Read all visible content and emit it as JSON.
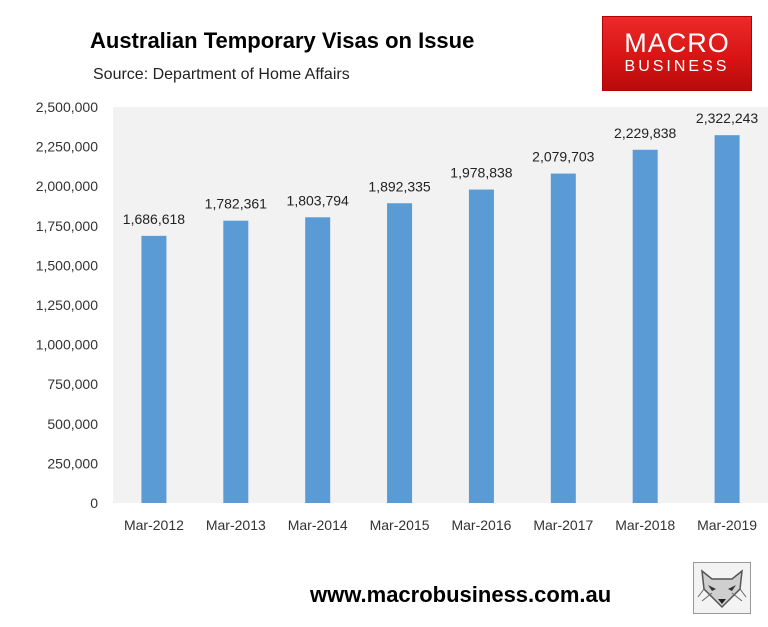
{
  "header": {
    "title": "Australian Temporary Visas on Issue",
    "source": "Source: Department of Home Affairs"
  },
  "logo": {
    "line1": "MACRO",
    "line2": "BUSINESS",
    "color": "#e01b1b"
  },
  "footer": {
    "url": "www.macrobusiness.com.au"
  },
  "fox_logo": {
    "icon": "fox-head-icon"
  },
  "colors": {
    "bar": "#5b9bd5",
    "plot_background": "#f2f2f2"
  },
  "chart_data": {
    "type": "bar",
    "title": "Australian Temporary Visas on Issue",
    "xlabel": "",
    "ylabel": "",
    "categories": [
      "Mar-2012",
      "Mar-2013",
      "Mar-2014",
      "Mar-2015",
      "Mar-2016",
      "Mar-2017",
      "Mar-2018",
      "Mar-2019"
    ],
    "values": [
      1686618,
      1782361,
      1803794,
      1892335,
      1978838,
      2079703,
      2229838,
      2322243
    ],
    "value_labels": [
      "1,686,618",
      "1,782,361",
      "1,803,794",
      "1,892,335",
      "1,978,838",
      "2,079,703",
      "2,229,838",
      "2,322,243"
    ],
    "ylim": [
      0,
      2500000
    ],
    "yticks": [
      "0",
      "250,000",
      "500,000",
      "750,000",
      "1,000,000",
      "1,250,000",
      "1,500,000",
      "1,750,000",
      "2,000,000",
      "2,250,000",
      "2,500,000"
    ],
    "grid": false,
    "legend": "none"
  }
}
